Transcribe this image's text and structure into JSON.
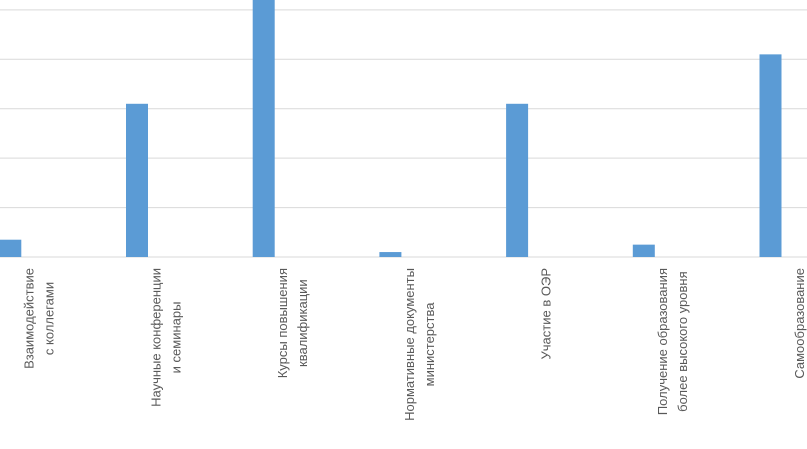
{
  "chart_data": {
    "type": "bar",
    "categories": [
      [
        "Взаимодействие",
        "с коллегами"
      ],
      [
        "Научные конференции",
        "и семинары"
      ],
      [
        "Курсы повышения",
        "квалификации"
      ],
      [
        "Нормативные документы",
        "министерства"
      ],
      [
        "Участие в ОЭР"
      ],
      [
        "Получение образования",
        "более высокого уровня"
      ],
      [
        "Самообразование"
      ]
    ],
    "values": [
      0.35,
      3.1,
      5.2,
      0.1,
      3.1,
      0.25,
      4.1
    ],
    "color": "#5b9bd5",
    "ylim": [
      0,
      5.2
    ],
    "yticks": [
      0,
      1,
      2,
      3,
      4,
      5
    ],
    "grid": true
  }
}
